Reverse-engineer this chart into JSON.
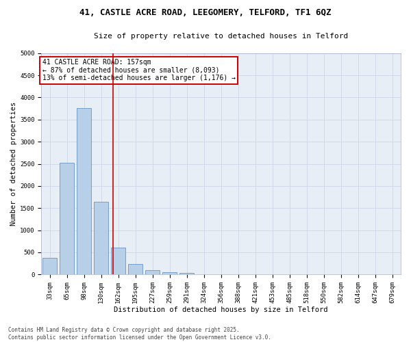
{
  "title_line1": "41, CASTLE ACRE ROAD, LEEGOMERY, TELFORD, TF1 6QZ",
  "title_line2": "Size of property relative to detached houses in Telford",
  "xlabel": "Distribution of detached houses by size in Telford",
  "ylabel": "Number of detached properties",
  "bar_categories": [
    "33sqm",
    "65sqm",
    "98sqm",
    "130sqm",
    "162sqm",
    "195sqm",
    "227sqm",
    "259sqm",
    "291sqm",
    "324sqm",
    "356sqm",
    "388sqm",
    "421sqm",
    "453sqm",
    "485sqm",
    "518sqm",
    "550sqm",
    "582sqm",
    "614sqm",
    "647sqm",
    "679sqm"
  ],
  "bar_values": [
    380,
    2530,
    3760,
    1650,
    610,
    240,
    100,
    50,
    30,
    0,
    0,
    0,
    0,
    0,
    0,
    0,
    0,
    0,
    0,
    0,
    0
  ],
  "bar_color": "#b8cfe8",
  "bar_edge_color": "#5585bb",
  "vline_color": "#cc0000",
  "vline_pos": 3.7,
  "annotation_text": "41 CASTLE ACRE ROAD: 157sqm\n← 87% of detached houses are smaller (8,093)\n13% of semi-detached houses are larger (1,176) →",
  "annotation_box_color": "#cc0000",
  "ylim": [
    0,
    5000
  ],
  "yticks": [
    0,
    500,
    1000,
    1500,
    2000,
    2500,
    3000,
    3500,
    4000,
    4500,
    5000
  ],
  "grid_color": "#cdd6e8",
  "background_color": "#e8eef6",
  "footnote": "Contains HM Land Registry data © Crown copyright and database right 2025.\nContains public sector information licensed under the Open Government Licence v3.0.",
  "title_fontsize": 9,
  "subtitle_fontsize": 8,
  "axis_label_fontsize": 7.5,
  "tick_fontsize": 6.5,
  "annot_fontsize": 7
}
